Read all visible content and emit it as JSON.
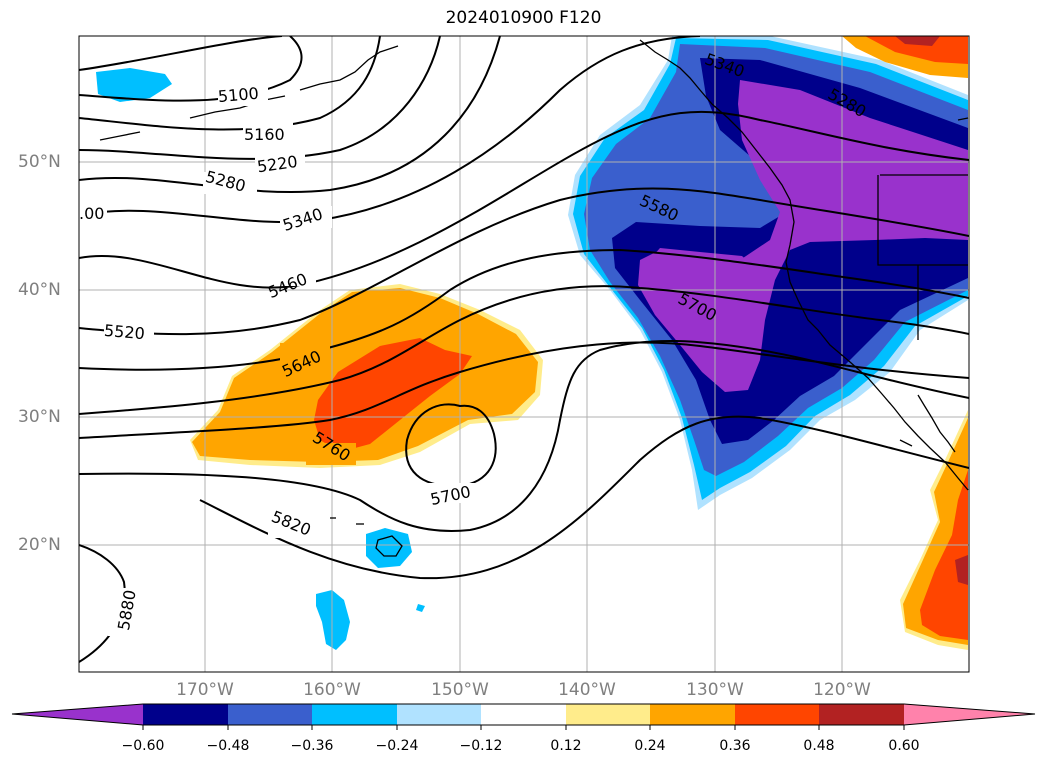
{
  "title": "2024010900 F120",
  "lat_labels": [
    "50°N",
    "40°N",
    "30°N",
    "20°N"
  ],
  "lon_labels": [
    "170°W",
    "160°W",
    "150°W",
    "140°W",
    "130°W",
    "120°W"
  ],
  "contour_labels": [
    "5100",
    "5160",
    "5220",
    "5280",
    "5340",
    "5460",
    "5520",
    "5640",
    "5760",
    "5700",
    "5820",
    "5880",
    "5340",
    "5280",
    "5580",
    "5700",
    ".00"
  ],
  "colorbar": {
    "ticks": [
      "−0.60",
      "−0.48",
      "−0.36",
      "−0.24",
      "−0.12",
      "0.12",
      "0.24",
      "0.36",
      "0.48",
      "0.60"
    ],
    "colors": [
      "#9932cc",
      "#00008b",
      "#3a5fcd",
      "#00bfff",
      "#b0e2ff",
      "#ffffff",
      "#ffec8b",
      "#ffa500",
      "#ff4500",
      "#b22222",
      "#ff82ab"
    ]
  }
}
